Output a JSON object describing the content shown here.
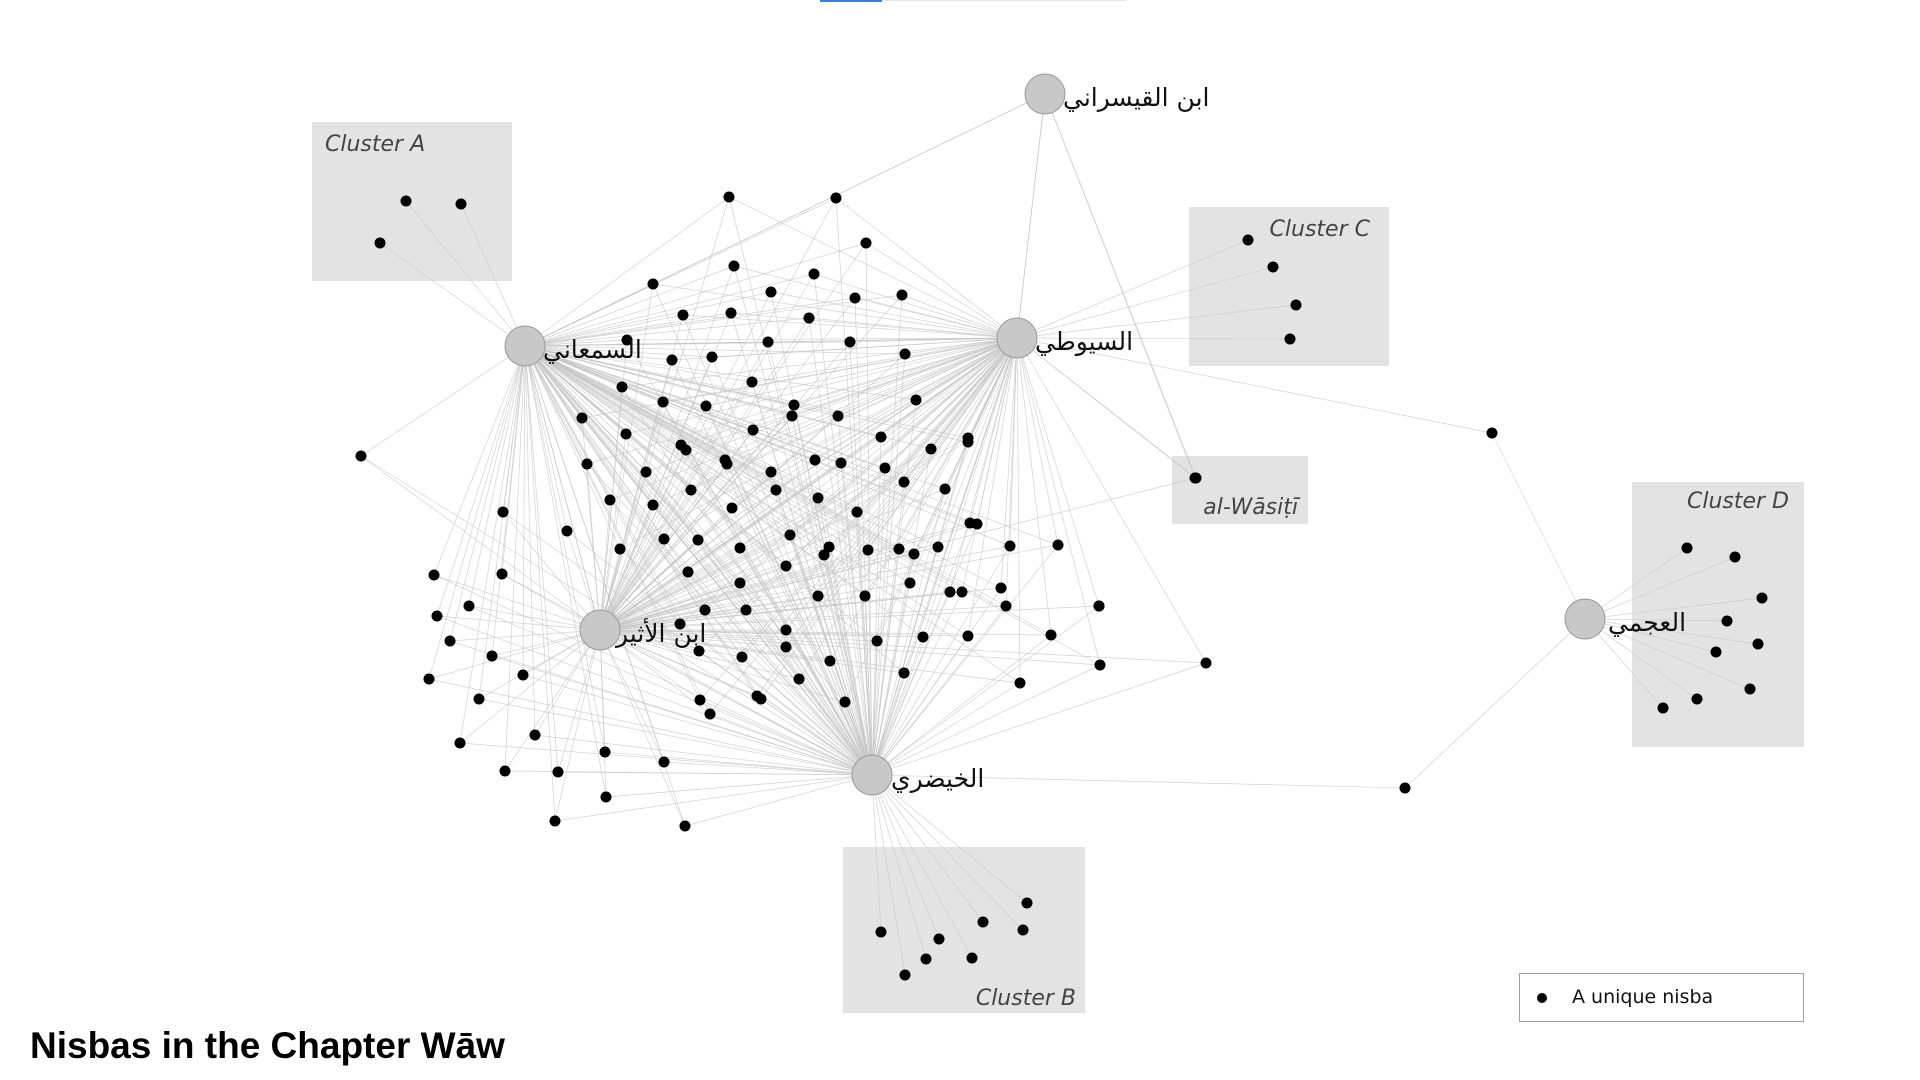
{
  "diagram": {
    "title": "Nisbas in the Chapter Wāw",
    "legend": {
      "label": "A unique nisba"
    },
    "clusters": [
      {
        "id": "A",
        "label": "Cluster A"
      },
      {
        "id": "B",
        "label": "Cluster B"
      },
      {
        "id": "C",
        "label": "Cluster C"
      },
      {
        "id": "D",
        "label": "Cluster D"
      },
      {
        "id": "W",
        "label": "al-Wāsiṭī"
      }
    ],
    "hubs": [
      {
        "id": "samani",
        "label": "السمعاني"
      },
      {
        "id": "suyuti",
        "label": "السيوطي"
      },
      {
        "id": "athir",
        "label": "ابن الأثير"
      },
      {
        "id": "khaydari",
        "label": "الخيضري"
      },
      {
        "id": "qaysarani",
        "label": "ابن القيسراني"
      },
      {
        "id": "ajami",
        "label": "العجمي"
      }
    ],
    "colors": {
      "node": "#000000",
      "hub_fill": "#c8c8c8",
      "hub_stroke": "#9a9a9a",
      "edge": "#c4c4c4",
      "cluster_fill": "#e3e3e3",
      "accent_tab": "#3b7dd8"
    }
  }
}
